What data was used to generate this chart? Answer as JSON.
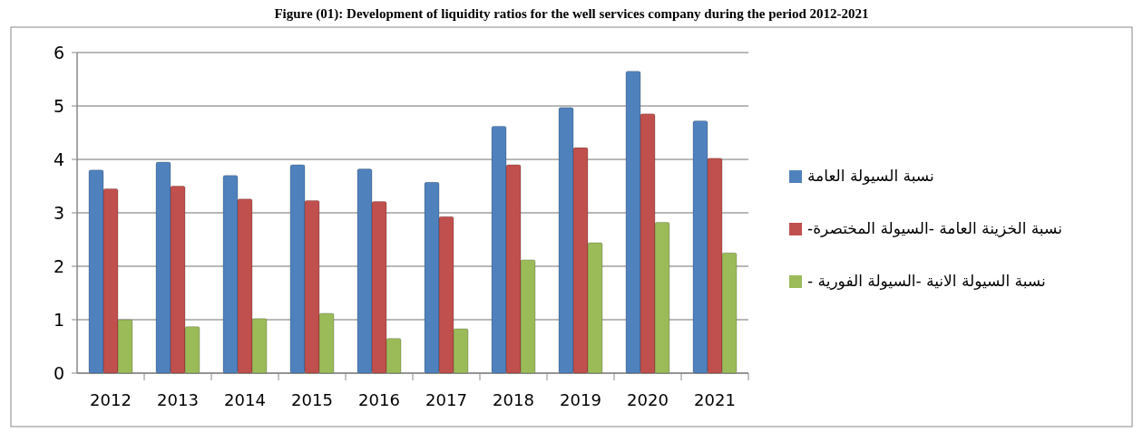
{
  "chart_data": {
    "type": "bar",
    "title": "Figure (01): Development of liquidity ratios for the well services company during the period 2012-2021",
    "categories": [
      "2012",
      "2013",
      "2014",
      "2015",
      "2016",
      "2017",
      "2018",
      "2019",
      "2020",
      "2021"
    ],
    "series": [
      {
        "name": "نسبة السيولة العامة",
        "color": "#4f81bd",
        "values": [
          3.8,
          3.95,
          3.7,
          3.9,
          3.82,
          3.57,
          4.62,
          4.97,
          5.65,
          4.72
        ]
      },
      {
        "name": "نسبة الخزينة العامة -السيولة المختصرة-",
        "color": "#c0504d",
        "values": [
          3.45,
          3.5,
          3.26,
          3.23,
          3.21,
          2.93,
          3.9,
          4.22,
          4.85,
          4.02
        ]
      },
      {
        "name": "نسبة السيولة الانية -السيولة الفورية -",
        "color": "#9bbb59",
        "values": [
          1.0,
          0.87,
          1.02,
          1.12,
          0.65,
          0.83,
          2.12,
          2.44,
          2.82,
          2.25
        ]
      }
    ],
    "ylim": [
      0,
      6
    ],
    "yticks": [
      0,
      1,
      2,
      3,
      4,
      5,
      6
    ],
    "grid": "y",
    "legend": "right"
  }
}
